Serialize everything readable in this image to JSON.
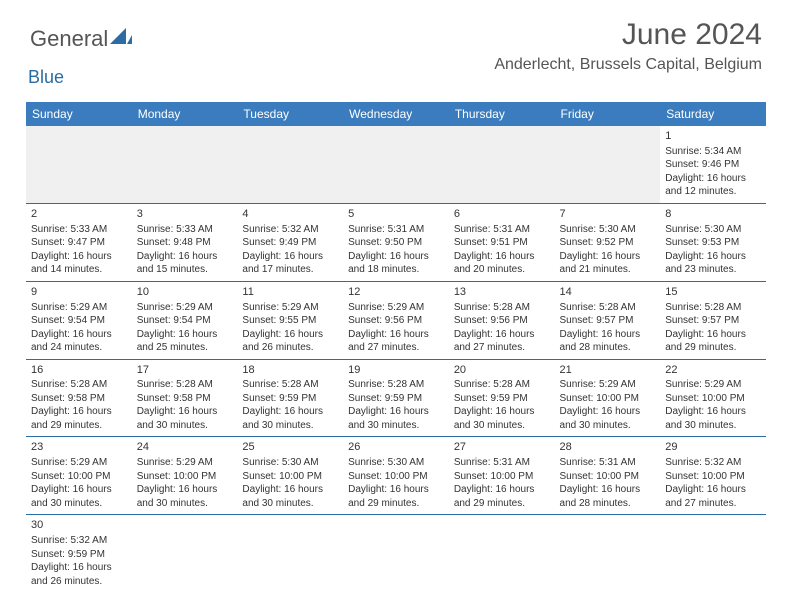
{
  "logo": {
    "text1": "General",
    "text2": "Blue"
  },
  "title": "June 2024",
  "location": "Anderlecht, Brussels Capital, Belgium",
  "colors": {
    "header_bg": "#3a7cbd",
    "header_text": "#ffffff",
    "border": "#2b6ca3",
    "body_text": "#333333",
    "title_text": "#555555",
    "logo_blue": "#2b6ca3",
    "empty_row_bg": "#f0f0f0"
  },
  "day_names": [
    "Sunday",
    "Monday",
    "Tuesday",
    "Wednesday",
    "Thursday",
    "Friday",
    "Saturday"
  ],
  "weeks": [
    [
      null,
      null,
      null,
      null,
      null,
      null,
      {
        "n": "1",
        "sr": "Sunrise: 5:34 AM",
        "ss": "Sunset: 9:46 PM",
        "d1": "Daylight: 16 hours",
        "d2": "and 12 minutes."
      }
    ],
    [
      {
        "n": "2",
        "sr": "Sunrise: 5:33 AM",
        "ss": "Sunset: 9:47 PM",
        "d1": "Daylight: 16 hours",
        "d2": "and 14 minutes."
      },
      {
        "n": "3",
        "sr": "Sunrise: 5:33 AM",
        "ss": "Sunset: 9:48 PM",
        "d1": "Daylight: 16 hours",
        "d2": "and 15 minutes."
      },
      {
        "n": "4",
        "sr": "Sunrise: 5:32 AM",
        "ss": "Sunset: 9:49 PM",
        "d1": "Daylight: 16 hours",
        "d2": "and 17 minutes."
      },
      {
        "n": "5",
        "sr": "Sunrise: 5:31 AM",
        "ss": "Sunset: 9:50 PM",
        "d1": "Daylight: 16 hours",
        "d2": "and 18 minutes."
      },
      {
        "n": "6",
        "sr": "Sunrise: 5:31 AM",
        "ss": "Sunset: 9:51 PM",
        "d1": "Daylight: 16 hours",
        "d2": "and 20 minutes."
      },
      {
        "n": "7",
        "sr": "Sunrise: 5:30 AM",
        "ss": "Sunset: 9:52 PM",
        "d1": "Daylight: 16 hours",
        "d2": "and 21 minutes."
      },
      {
        "n": "8",
        "sr": "Sunrise: 5:30 AM",
        "ss": "Sunset: 9:53 PM",
        "d1": "Daylight: 16 hours",
        "d2": "and 23 minutes."
      }
    ],
    [
      {
        "n": "9",
        "sr": "Sunrise: 5:29 AM",
        "ss": "Sunset: 9:54 PM",
        "d1": "Daylight: 16 hours",
        "d2": "and 24 minutes."
      },
      {
        "n": "10",
        "sr": "Sunrise: 5:29 AM",
        "ss": "Sunset: 9:54 PM",
        "d1": "Daylight: 16 hours",
        "d2": "and 25 minutes."
      },
      {
        "n": "11",
        "sr": "Sunrise: 5:29 AM",
        "ss": "Sunset: 9:55 PM",
        "d1": "Daylight: 16 hours",
        "d2": "and 26 minutes."
      },
      {
        "n": "12",
        "sr": "Sunrise: 5:29 AM",
        "ss": "Sunset: 9:56 PM",
        "d1": "Daylight: 16 hours",
        "d2": "and 27 minutes."
      },
      {
        "n": "13",
        "sr": "Sunrise: 5:28 AM",
        "ss": "Sunset: 9:56 PM",
        "d1": "Daylight: 16 hours",
        "d2": "and 27 minutes."
      },
      {
        "n": "14",
        "sr": "Sunrise: 5:28 AM",
        "ss": "Sunset: 9:57 PM",
        "d1": "Daylight: 16 hours",
        "d2": "and 28 minutes."
      },
      {
        "n": "15",
        "sr": "Sunrise: 5:28 AM",
        "ss": "Sunset: 9:57 PM",
        "d1": "Daylight: 16 hours",
        "d2": "and 29 minutes."
      }
    ],
    [
      {
        "n": "16",
        "sr": "Sunrise: 5:28 AM",
        "ss": "Sunset: 9:58 PM",
        "d1": "Daylight: 16 hours",
        "d2": "and 29 minutes."
      },
      {
        "n": "17",
        "sr": "Sunrise: 5:28 AM",
        "ss": "Sunset: 9:58 PM",
        "d1": "Daylight: 16 hours",
        "d2": "and 30 minutes."
      },
      {
        "n": "18",
        "sr": "Sunrise: 5:28 AM",
        "ss": "Sunset: 9:59 PM",
        "d1": "Daylight: 16 hours",
        "d2": "and 30 minutes."
      },
      {
        "n": "19",
        "sr": "Sunrise: 5:28 AM",
        "ss": "Sunset: 9:59 PM",
        "d1": "Daylight: 16 hours",
        "d2": "and 30 minutes."
      },
      {
        "n": "20",
        "sr": "Sunrise: 5:28 AM",
        "ss": "Sunset: 9:59 PM",
        "d1": "Daylight: 16 hours",
        "d2": "and 30 minutes."
      },
      {
        "n": "21",
        "sr": "Sunrise: 5:29 AM",
        "ss": "Sunset: 10:00 PM",
        "d1": "Daylight: 16 hours",
        "d2": "and 30 minutes."
      },
      {
        "n": "22",
        "sr": "Sunrise: 5:29 AM",
        "ss": "Sunset: 10:00 PM",
        "d1": "Daylight: 16 hours",
        "d2": "and 30 minutes."
      }
    ],
    [
      {
        "n": "23",
        "sr": "Sunrise: 5:29 AM",
        "ss": "Sunset: 10:00 PM",
        "d1": "Daylight: 16 hours",
        "d2": "and 30 minutes."
      },
      {
        "n": "24",
        "sr": "Sunrise: 5:29 AM",
        "ss": "Sunset: 10:00 PM",
        "d1": "Daylight: 16 hours",
        "d2": "and 30 minutes."
      },
      {
        "n": "25",
        "sr": "Sunrise: 5:30 AM",
        "ss": "Sunset: 10:00 PM",
        "d1": "Daylight: 16 hours",
        "d2": "and 30 minutes."
      },
      {
        "n": "26",
        "sr": "Sunrise: 5:30 AM",
        "ss": "Sunset: 10:00 PM",
        "d1": "Daylight: 16 hours",
        "d2": "and 29 minutes."
      },
      {
        "n": "27",
        "sr": "Sunrise: 5:31 AM",
        "ss": "Sunset: 10:00 PM",
        "d1": "Daylight: 16 hours",
        "d2": "and 29 minutes."
      },
      {
        "n": "28",
        "sr": "Sunrise: 5:31 AM",
        "ss": "Sunset: 10:00 PM",
        "d1": "Daylight: 16 hours",
        "d2": "and 28 minutes."
      },
      {
        "n": "29",
        "sr": "Sunrise: 5:32 AM",
        "ss": "Sunset: 10:00 PM",
        "d1": "Daylight: 16 hours",
        "d2": "and 27 minutes."
      }
    ],
    [
      {
        "n": "30",
        "sr": "Sunrise: 5:32 AM",
        "ss": "Sunset: 9:59 PM",
        "d1": "Daylight: 16 hours",
        "d2": "and 26 minutes."
      },
      null,
      null,
      null,
      null,
      null,
      null
    ]
  ]
}
